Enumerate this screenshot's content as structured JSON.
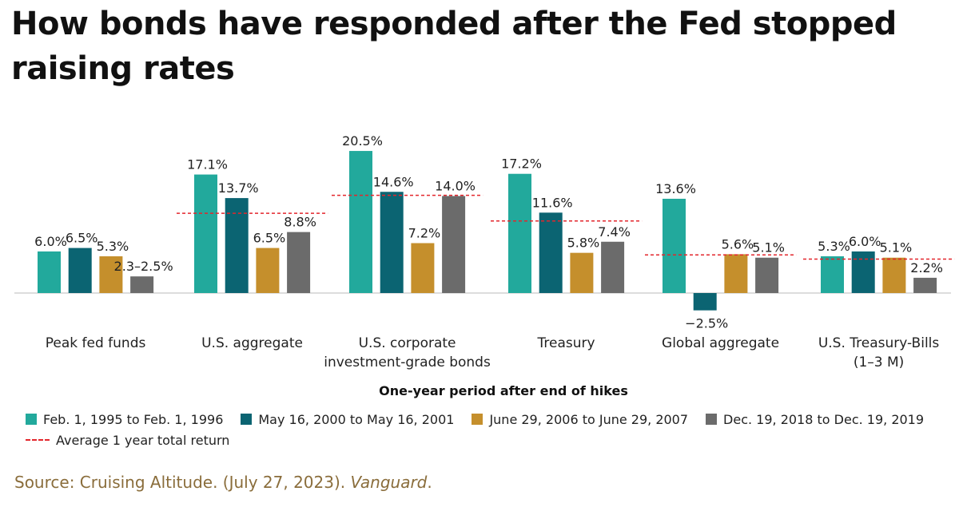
{
  "colors": {
    "series": [
      "#22a99c",
      "#0b6472",
      "#c58f2c",
      "#6b6b6b"
    ],
    "average": "#e3262c",
    "source_text": "#8a6d3b"
  },
  "source": {
    "prefix": "Source: Cruising Altitude. (July 27, 2023). ",
    "italic": "Vanguard",
    "suffix": "."
  },
  "chart_data": {
    "type": "bar",
    "title": "How bonds have responded after the Fed stopped raising rates",
    "xlabel": "One-year period after end of hikes",
    "ylabel": "",
    "ylim": [
      -2.5,
      20.5
    ],
    "grid": false,
    "legend_position": "bottom",
    "categories": [
      [
        "Peak fed funds"
      ],
      [
        "U.S. aggregate"
      ],
      [
        "U.S. corporate",
        "investment-grade bonds"
      ],
      [
        "Treasury"
      ],
      [
        "Global aggregate"
      ],
      [
        "U.S. Treasury-Bills",
        "(1–3 M)"
      ]
    ],
    "series": [
      {
        "name": "Feb. 1, 1995 to Feb. 1, 1996",
        "values": [
          6.0,
          17.1,
          20.5,
          17.2,
          13.6,
          5.3
        ],
        "labels": [
          "6.0%",
          "17.1%",
          "20.5%",
          "17.2%",
          "13.6%",
          "5.3%"
        ]
      },
      {
        "name": "May 16, 2000 to May 16, 2001",
        "values": [
          6.5,
          13.7,
          14.6,
          11.6,
          -2.5,
          6.0
        ],
        "labels": [
          "6.5%",
          "13.7%",
          "14.6%",
          "11.6%",
          "−2.5%",
          "6.0%"
        ]
      },
      {
        "name": "June 29, 2006 to June 29, 2007",
        "values": [
          5.3,
          6.5,
          7.2,
          5.8,
          5.6,
          5.1
        ],
        "labels": [
          "5.3%",
          "6.5%",
          "7.2%",
          "5.8%",
          "5.6%",
          "5.1%"
        ]
      },
      {
        "name": "Dec. 19, 2018 to Dec. 19, 2019",
        "values": [
          2.4,
          8.8,
          14.0,
          7.4,
          5.1,
          2.2
        ],
        "labels": [
          "2.3–2.5%",
          "8.8%",
          "14.0%",
          "7.4%",
          "5.1%",
          "2.2%"
        ]
      }
    ],
    "average": {
      "name": "Average 1 year total return",
      "values": [
        null,
        11.5,
        14.1,
        10.4,
        5.5,
        4.9
      ]
    }
  }
}
